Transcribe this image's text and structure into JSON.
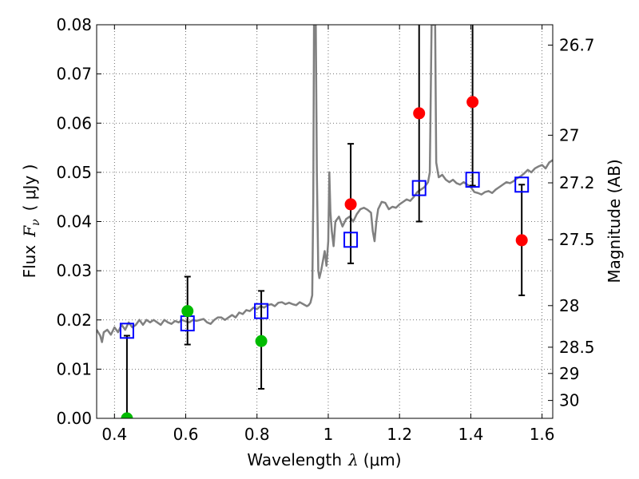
{
  "chart_data": {
    "type": "scatter",
    "xlabel_parts": {
      "prefix": "Wavelength",
      "symbol": "λ",
      "units": "(μm)"
    },
    "ylabel_parts": {
      "prefix": "Flux",
      "symbol": "F",
      "subscript": "ν",
      "units": "( μJy )"
    },
    "y2label": "Magnitude (AB)",
    "xlim": [
      0.35,
      1.63
    ],
    "ylim": [
      0.0,
      0.08
    ],
    "grid": true,
    "x_ticks": [
      {
        "value": 0.4,
        "label": "0.4"
      },
      {
        "value": 0.6,
        "label": "0.6"
      },
      {
        "value": 0.8,
        "label": "0.8"
      },
      {
        "value": 1.0,
        "label": "1"
      },
      {
        "value": 1.2,
        "label": "1.2"
      },
      {
        "value": 1.4,
        "label": "1.4"
      },
      {
        "value": 1.6,
        "label": "1.6"
      }
    ],
    "y_ticks": [
      {
        "value": 0.0,
        "label": "0.00"
      },
      {
        "value": 0.01,
        "label": "0.01"
      },
      {
        "value": 0.02,
        "label": "0.02"
      },
      {
        "value": 0.03,
        "label": "0.03"
      },
      {
        "value": 0.04,
        "label": "0.04"
      },
      {
        "value": 0.05,
        "label": "0.05"
      },
      {
        "value": 0.06,
        "label": "0.06"
      },
      {
        "value": 0.07,
        "label": "0.07"
      },
      {
        "value": 0.08,
        "label": "0.08"
      }
    ],
    "y2_ticks": [
      {
        "mag": 26.7,
        "label": "26.7"
      },
      {
        "mag": 27.0,
        "label": "27"
      },
      {
        "mag": 27.2,
        "label": "27.2"
      },
      {
        "mag": 27.5,
        "label": "27.5"
      },
      {
        "mag": 28.0,
        "label": "28"
      },
      {
        "mag": 28.5,
        "label": "28.5"
      },
      {
        "mag": 29.0,
        "label": "29"
      },
      {
        "mag": 30.0,
        "label": "30"
      }
    ],
    "series": [
      {
        "kind": "model-spectrum",
        "color": "#808080",
        "points": [
          [
            0.35,
            0.018
          ],
          [
            0.36,
            0.0168
          ],
          [
            0.365,
            0.0155
          ],
          [
            0.37,
            0.0175
          ],
          [
            0.38,
            0.018
          ],
          [
            0.39,
            0.017
          ],
          [
            0.4,
            0.0185
          ],
          [
            0.41,
            0.0175
          ],
          [
            0.42,
            0.019
          ],
          [
            0.43,
            0.018
          ],
          [
            0.44,
            0.0195
          ],
          [
            0.45,
            0.0185
          ],
          [
            0.46,
            0.019
          ],
          [
            0.47,
            0.02
          ],
          [
            0.48,
            0.019
          ],
          [
            0.49,
            0.02
          ],
          [
            0.5,
            0.0195
          ],
          [
            0.51,
            0.02
          ],
          [
            0.52,
            0.0195
          ],
          [
            0.53,
            0.019
          ],
          [
            0.54,
            0.02
          ],
          [
            0.55,
            0.0195
          ],
          [
            0.56,
            0.0192
          ],
          [
            0.57,
            0.0198
          ],
          [
            0.58,
            0.0195
          ],
          [
            0.59,
            0.02
          ],
          [
            0.6,
            0.0197
          ],
          [
            0.61,
            0.0195
          ],
          [
            0.62,
            0.02
          ],
          [
            0.63,
            0.0198
          ],
          [
            0.64,
            0.02
          ],
          [
            0.65,
            0.0202
          ],
          [
            0.66,
            0.0195
          ],
          [
            0.67,
            0.0192
          ],
          [
            0.68,
            0.02
          ],
          [
            0.69,
            0.0205
          ],
          [
            0.7,
            0.0205
          ],
          [
            0.71,
            0.02
          ],
          [
            0.72,
            0.0205
          ],
          [
            0.73,
            0.021
          ],
          [
            0.74,
            0.0205
          ],
          [
            0.75,
            0.0215
          ],
          [
            0.76,
            0.0212
          ],
          [
            0.77,
            0.022
          ],
          [
            0.78,
            0.0218
          ],
          [
            0.79,
            0.0225
          ],
          [
            0.8,
            0.0222
          ],
          [
            0.81,
            0.0228
          ],
          [
            0.82,
            0.0225
          ],
          [
            0.83,
            0.023
          ],
          [
            0.84,
            0.0232
          ],
          [
            0.85,
            0.0228
          ],
          [
            0.86,
            0.0235
          ],
          [
            0.87,
            0.0236
          ],
          [
            0.88,
            0.0232
          ],
          [
            0.89,
            0.0235
          ],
          [
            0.9,
            0.0232
          ],
          [
            0.91,
            0.023
          ],
          [
            0.92,
            0.0236
          ],
          [
            0.93,
            0.0232
          ],
          [
            0.94,
            0.0228
          ],
          [
            0.945,
            0.023
          ],
          [
            0.95,
            0.0235
          ],
          [
            0.955,
            0.025
          ],
          [
            0.958,
            0.045
          ],
          [
            0.96,
            0.08
          ],
          [
            0.965,
            0.08
          ],
          [
            0.968,
            0.05
          ],
          [
            0.972,
            0.03
          ],
          [
            0.975,
            0.0285
          ],
          [
            0.98,
            0.03
          ],
          [
            0.985,
            0.032
          ],
          [
            0.99,
            0.034
          ],
          [
            0.995,
            0.031
          ],
          [
            1.0,
            0.036
          ],
          [
            1.003,
            0.05
          ],
          [
            1.006,
            0.042
          ],
          [
            1.01,
            0.038
          ],
          [
            1.015,
            0.035
          ],
          [
            1.02,
            0.04
          ],
          [
            1.03,
            0.041
          ],
          [
            1.04,
            0.039
          ],
          [
            1.05,
            0.0405
          ],
          [
            1.06,
            0.041
          ],
          [
            1.07,
            0.04
          ],
          [
            1.08,
            0.0415
          ],
          [
            1.09,
            0.0425
          ],
          [
            1.1,
            0.0428
          ],
          [
            1.11,
            0.0424
          ],
          [
            1.12,
            0.0418
          ],
          [
            1.125,
            0.038
          ],
          [
            1.13,
            0.036
          ],
          [
            1.135,
            0.04
          ],
          [
            1.14,
            0.0425
          ],
          [
            1.15,
            0.044
          ],
          [
            1.16,
            0.0438
          ],
          [
            1.17,
            0.0425
          ],
          [
            1.18,
            0.043
          ],
          [
            1.19,
            0.0428
          ],
          [
            1.2,
            0.0435
          ],
          [
            1.21,
            0.044
          ],
          [
            1.22,
            0.0445
          ],
          [
            1.23,
            0.0442
          ],
          [
            1.24,
            0.045
          ],
          [
            1.25,
            0.046
          ],
          [
            1.26,
            0.0465
          ],
          [
            1.27,
            0.047
          ],
          [
            1.28,
            0.048
          ],
          [
            1.285,
            0.05
          ],
          [
            1.29,
            0.08
          ],
          [
            1.3,
            0.08
          ],
          [
            1.303,
            0.052
          ],
          [
            1.31,
            0.049
          ],
          [
            1.32,
            0.0495
          ],
          [
            1.33,
            0.0485
          ],
          [
            1.34,
            0.048
          ],
          [
            1.35,
            0.0485
          ],
          [
            1.36,
            0.0478
          ],
          [
            1.37,
            0.0475
          ],
          [
            1.38,
            0.048
          ],
          [
            1.39,
            0.0475
          ],
          [
            1.4,
            0.047
          ],
          [
            1.41,
            0.046
          ],
          [
            1.42,
            0.0458
          ],
          [
            1.43,
            0.0455
          ],
          [
            1.44,
            0.046
          ],
          [
            1.45,
            0.0462
          ],
          [
            1.46,
            0.0458
          ],
          [
            1.47,
            0.0465
          ],
          [
            1.48,
            0.047
          ],
          [
            1.49,
            0.0475
          ],
          [
            1.5,
            0.048
          ],
          [
            1.51,
            0.0478
          ],
          [
            1.52,
            0.0482
          ],
          [
            1.53,
            0.0488
          ],
          [
            1.54,
            0.0492
          ],
          [
            1.55,
            0.0498
          ],
          [
            1.56,
            0.0505
          ],
          [
            1.57,
            0.05
          ],
          [
            1.58,
            0.0508
          ],
          [
            1.59,
            0.0512
          ],
          [
            1.6,
            0.0515
          ],
          [
            1.61,
            0.0508
          ],
          [
            1.62,
            0.052
          ],
          [
            1.63,
            0.0525
          ]
        ]
      },
      {
        "kind": "model-photometry",
        "marker": "open-square",
        "color": "#0000ff",
        "points": [
          {
            "x": 0.435,
            "y": 0.0178
          },
          {
            "x": 0.605,
            "y": 0.0193
          },
          {
            "x": 0.812,
            "y": 0.0218
          },
          {
            "x": 1.063,
            "y": 0.0363
          },
          {
            "x": 1.255,
            "y": 0.0468
          },
          {
            "x": 1.405,
            "y": 0.0485
          },
          {
            "x": 1.543,
            "y": 0.0475
          }
        ]
      },
      {
        "kind": "observed-optical",
        "marker": "filled-circle",
        "color": "#00bb00",
        "points": [
          {
            "x": 0.435,
            "y": 0.0,
            "err_lo": 0.0,
            "err_hi": 0.0168
          },
          {
            "x": 0.605,
            "y": 0.0218,
            "err_lo": 0.0068,
            "err_hi": 0.007
          },
          {
            "x": 0.812,
            "y": 0.0157,
            "err_lo": 0.0097,
            "err_hi": 0.0102
          }
        ]
      },
      {
        "kind": "observed-nir",
        "marker": "filled-circle",
        "color": "#ff0000",
        "points": [
          {
            "x": 1.063,
            "y": 0.0435,
            "err_lo": 0.012,
            "err_hi": 0.0123
          },
          {
            "x": 1.255,
            "y": 0.062,
            "err_lo": 0.022,
            "err_hi": 0.02
          },
          {
            "x": 1.405,
            "y": 0.0643,
            "err_lo": 0.017,
            "err_hi": 0.018
          },
          {
            "x": 1.543,
            "y": 0.0362,
            "err_lo": 0.0112,
            "err_hi": 0.0113
          }
        ]
      }
    ]
  }
}
